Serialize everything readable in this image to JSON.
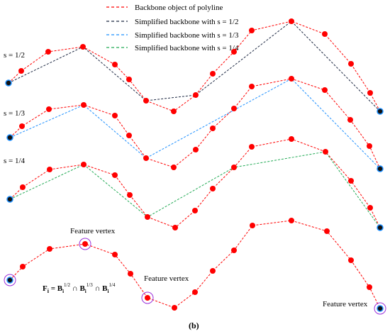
{
  "legend": [
    {
      "label": "Backbone object of polyline",
      "color": "#ff0000"
    },
    {
      "label": "Simplified backbone with s = 1/2",
      "color": "#1f2a44"
    },
    {
      "label": "Simplified backbone with s = 1/3",
      "color": "#1e90ff"
    },
    {
      "label": "Simplified backbone with s = 1/4",
      "color": "#22aa55"
    }
  ],
  "rows": [
    {
      "label": "s = 1/2"
    },
    {
      "label": "s = 1/3"
    },
    {
      "label": "s = 1/4"
    },
    {
      "label": ""
    }
  ],
  "annotations": {
    "feature_vertex": "Feature vertex",
    "formula": {
      "lhs": "F",
      "lhs_sub": "i",
      "eq": " = ",
      "b": "B",
      "sub": "i",
      "sup1": "1/2",
      "sup2": "1/3",
      "sup3": "1/4",
      "cap": " ∩ "
    }
  },
  "caption": "(b)",
  "colors": {
    "vertex": "#ff0000",
    "endpoint_fill": "#111111",
    "endpoint_ring": "#1e90ff",
    "feature_ring": "#9b30d9"
  }
}
